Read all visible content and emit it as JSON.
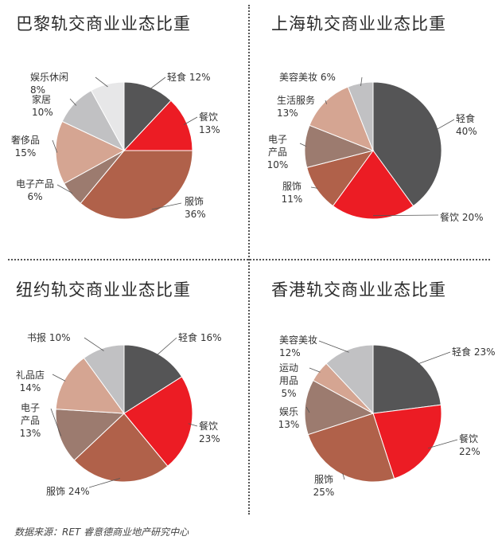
{
  "source": "数据来源：RET 睿意德商业地产研究中心",
  "chart_data": [
    {
      "type": "pie",
      "title": "巴黎轨交商业业态比重",
      "slices": [
        {
          "label": "轻食",
          "value": 12,
          "value_text": "12%",
          "color": "#555556"
        },
        {
          "label": "餐饮",
          "value": 13,
          "value_text": "13%",
          "color": "#ec1c24"
        },
        {
          "label": "服饰",
          "value": 36,
          "value_text": "36%",
          "color": "#b0614a"
        },
        {
          "label": "电子产品",
          "value": 6,
          "value_text": "6%",
          "color": "#9c7b6f"
        },
        {
          "label": "奢侈品",
          "value": 15,
          "value_text": "15%",
          "color": "#d5a592"
        },
        {
          "label": "家居",
          "value": 10,
          "value_text": "10%",
          "color": "#c1c1c3"
        },
        {
          "label": "娱乐休闲",
          "value": 8,
          "value_text": "8%",
          "color": "#e7e7e8"
        }
      ]
    },
    {
      "type": "pie",
      "title": "上海轨交商业业态比重",
      "slices": [
        {
          "label": "轻食",
          "value": 40,
          "value_text": "40%",
          "color": "#555556"
        },
        {
          "label": "餐饮",
          "value": 20,
          "value_text": "20%",
          "color": "#ec1c24"
        },
        {
          "label": "服饰",
          "value": 11,
          "value_text": "11%",
          "color": "#b0614a"
        },
        {
          "label": "电子产品",
          "value": 10,
          "value_text": "10%",
          "color": "#9c7b6f"
        },
        {
          "label": "生活服务",
          "value": 13,
          "value_text": "13%",
          "color": "#d5a592"
        },
        {
          "label": "美容美妆",
          "value": 6,
          "value_text": "6%",
          "color": "#c1c1c3"
        }
      ]
    },
    {
      "type": "pie",
      "title": "纽约轨交商业业态比重",
      "slices": [
        {
          "label": "轻食",
          "value": 16,
          "value_text": "16%",
          "color": "#555556"
        },
        {
          "label": "餐饮",
          "value": 23,
          "value_text": "23%",
          "color": "#ec1c24"
        },
        {
          "label": "服饰",
          "value": 24,
          "value_text": "24%",
          "color": "#b0614a"
        },
        {
          "label": "电子产品",
          "value": 13,
          "value_text": "13%",
          "color": "#9c7b6f"
        },
        {
          "label": "礼品店",
          "value": 14,
          "value_text": "14%",
          "color": "#d5a592"
        },
        {
          "label": "书报",
          "value": 10,
          "value_text": "10%",
          "color": "#c1c1c3"
        }
      ]
    },
    {
      "type": "pie",
      "title": "香港轨交商业业态比重",
      "slices": [
        {
          "label": "轻食",
          "value": 23,
          "value_text": "23%",
          "color": "#555556"
        },
        {
          "label": "餐饮",
          "value": 22,
          "value_text": "22%",
          "color": "#ec1c24"
        },
        {
          "label": "服饰",
          "value": 25,
          "value_text": "25%",
          "color": "#b0614a"
        },
        {
          "label": "娱乐",
          "value": 13,
          "value_text": "13%",
          "color": "#9c7b6f"
        },
        {
          "label": "运动用品",
          "value": 5,
          "value_text": "5%",
          "color": "#d5a592"
        },
        {
          "label": "美容美妆",
          "value": 12,
          "value_text": "12%",
          "color": "#c1c1c3"
        }
      ]
    }
  ]
}
